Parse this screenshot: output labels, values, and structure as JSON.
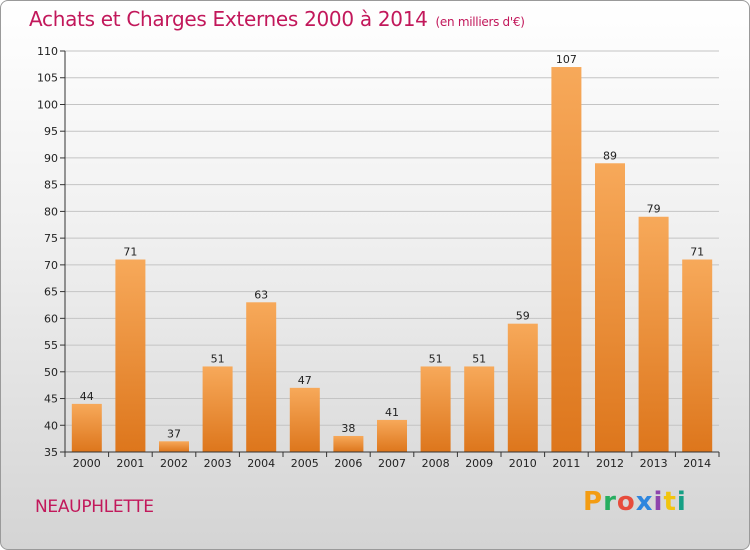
{
  "header": {
    "title": "Achats et Charges Externes 2000 à 2014",
    "unit": "(en milliers d'€)"
  },
  "footer": {
    "commune": "NEAUPHLETTE",
    "brand": "Proxiti",
    "brand_colors": [
      "#f39c12",
      "#27ae60",
      "#e74c3c",
      "#2e86de",
      "#8e44ad",
      "#f1c40f",
      "#16a085"
    ]
  },
  "colors": {
    "bar_light": "#f6a657",
    "bar_dark": "#de7a20",
    "title": "#c2185b"
  },
  "chart_data": {
    "type": "bar",
    "title": "Achats et Charges Externes 2000 à 2014",
    "subtitle": "(en milliers d'€)",
    "categories": [
      "2000",
      "2001",
      "2002",
      "2003",
      "2004",
      "2005",
      "2006",
      "2007",
      "2008",
      "2009",
      "2010",
      "2011",
      "2012",
      "2013",
      "2014"
    ],
    "values": [
      44,
      71,
      37,
      51,
      63,
      47,
      38,
      41,
      51,
      51,
      59,
      107,
      89,
      79,
      71
    ],
    "ylim": [
      35,
      110
    ],
    "yticks": [
      35,
      40,
      45,
      50,
      55,
      60,
      65,
      70,
      75,
      80,
      85,
      90,
      95,
      100,
      105,
      110
    ],
    "grid": true,
    "xlabel": "",
    "ylabel": ""
  }
}
